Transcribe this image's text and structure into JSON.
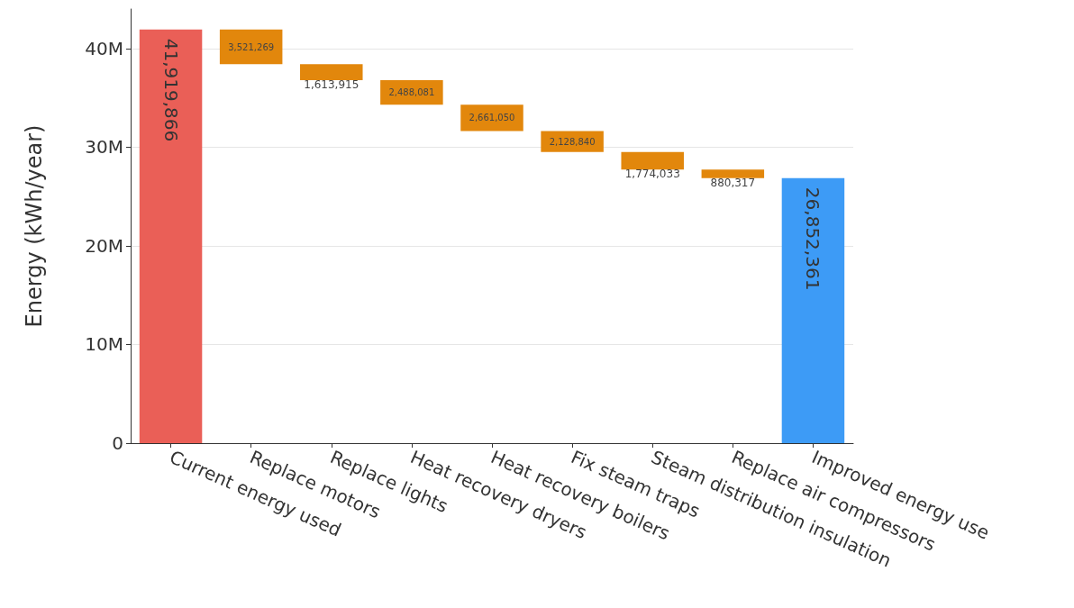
{
  "chart_data": {
    "type": "bar",
    "ylabel": "Energy (kWh/year)",
    "categories": [
      "Current energy used",
      "Replace motors",
      "Replace lights",
      "Heat recovery dryers",
      "Heat recovery boilers",
      "Fix steam traps",
      "Steam distribution insulation",
      "Replace air compressors",
      "Improved energy use"
    ],
    "values": [
      41919866,
      3521269,
      1613915,
      2488081,
      2661050,
      2128840,
      1774033,
      880317,
      26852361
    ],
    "base": [
      0,
      38398597,
      36784682,
      34296601,
      31635551,
      29506711,
      27732678,
      26852361,
      0
    ],
    "colors": [
      "#ea5f57",
      "#e2870c",
      "#e2870c",
      "#e2870c",
      "#e2870c",
      "#e2870c",
      "#e2870c",
      "#e2870c",
      "#3d9bf6"
    ],
    "ylim": [
      0,
      44000000
    ],
    "yticks": [
      {
        "value": 0,
        "label": "0"
      },
      {
        "value": 10000000,
        "label": "10M"
      },
      {
        "value": 20000000,
        "label": "20M"
      },
      {
        "value": 30000000,
        "label": "30M"
      },
      {
        "value": 40000000,
        "label": "40M"
      }
    ],
    "value_labels": [
      "41,919,866",
      "3,521,269",
      "1,613,915",
      "2,488,081",
      "2,661,050",
      "2,128,840",
      "1,774,033",
      "880,317",
      "26,852,361"
    ],
    "grid": "y"
  }
}
